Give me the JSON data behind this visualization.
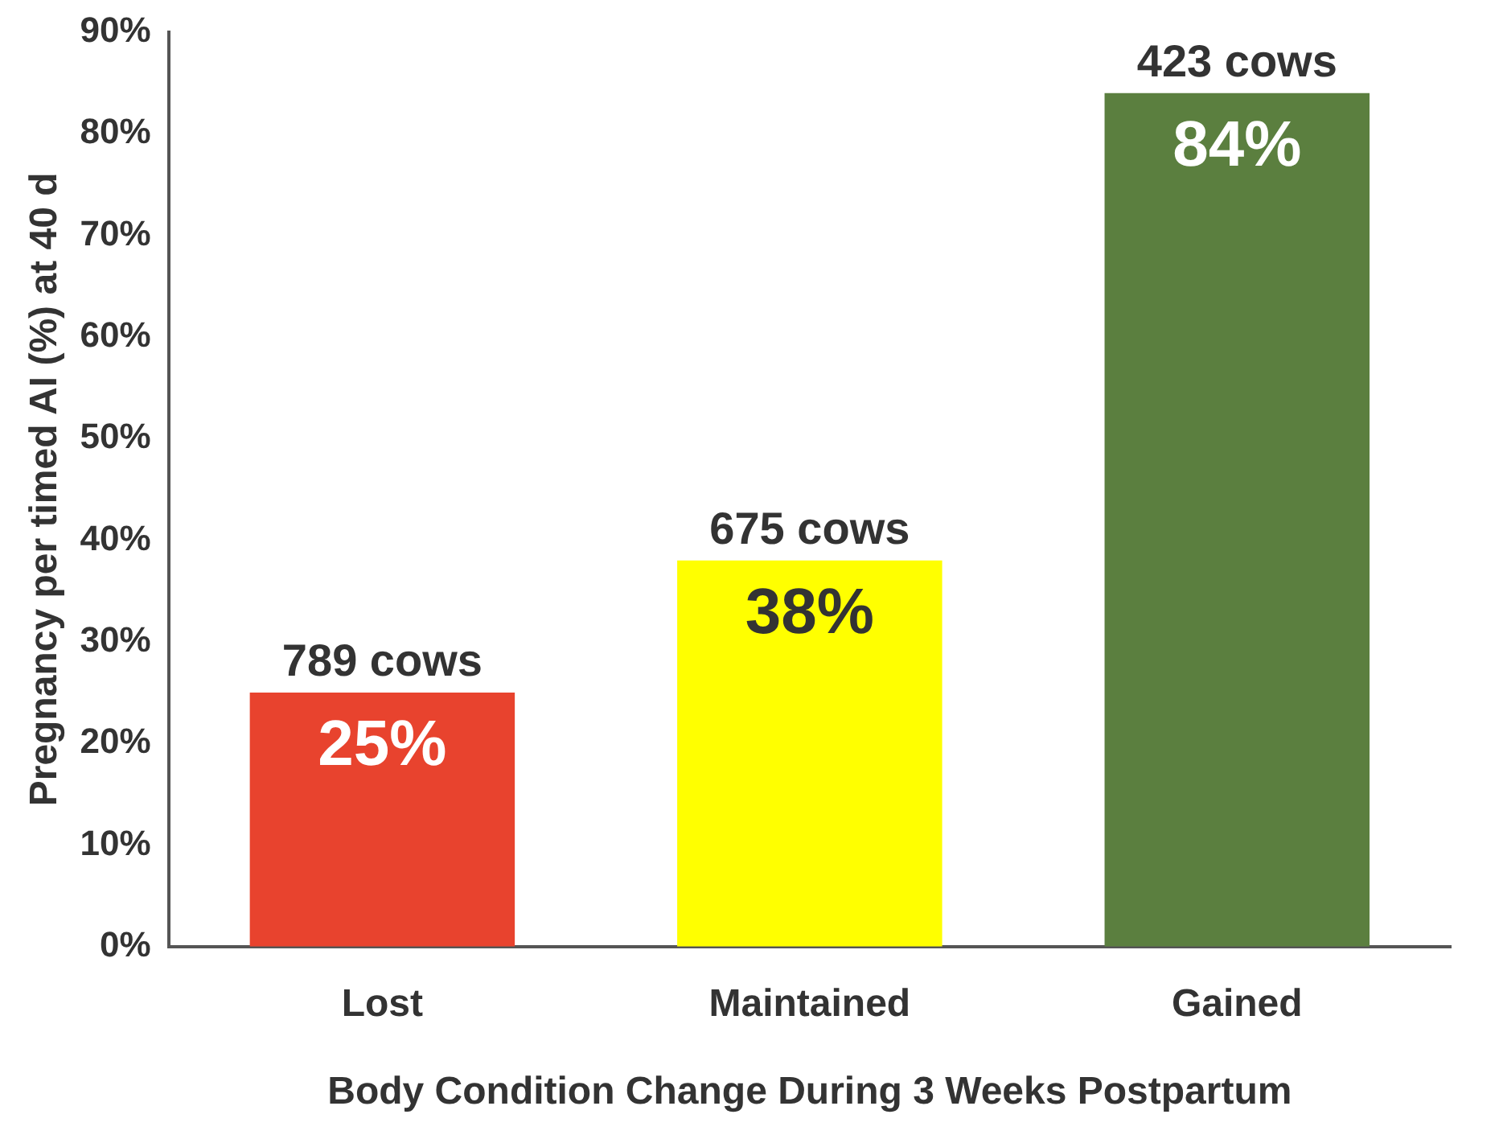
{
  "chart_data": {
    "type": "bar",
    "xlabel": "Body Condition Change During 3 Weeks Postpartum",
    "ylabel": "Pregnancy per timed AI (%) at 40 d",
    "categories": [
      "Lost",
      "Maintained",
      "Gained"
    ],
    "values": [
      25,
      38,
      84
    ],
    "colors": [
      "#e8432e",
      "#ffff00",
      "#5b7f3f"
    ],
    "value_labels": [
      "25%",
      "38%",
      "84%"
    ],
    "ylim": [
      0,
      90
    ],
    "yticks": [
      {
        "value": 0,
        "label": "0%"
      },
      {
        "value": 10,
        "label": "10%"
      },
      {
        "value": 20,
        "label": "20%"
      },
      {
        "value": 30,
        "label": "30%"
      },
      {
        "value": 40,
        "label": "40%"
      },
      {
        "value": 50,
        "label": "50%"
      },
      {
        "value": 60,
        "label": "60%"
      },
      {
        "value": 70,
        "label": "70%"
      },
      {
        "value": 80,
        "label": "80%"
      },
      {
        "value": 90,
        "label": "90%"
      }
    ],
    "annotations": [
      {
        "text": "789 cows",
        "x": "Lost",
        "y": 25
      },
      {
        "text": "675 cows",
        "x": "Maintained",
        "y": 38
      },
      {
        "text": "423 cows",
        "x": "Gained",
        "y": 84
      }
    ],
    "grid": false,
    "legend": false
  }
}
